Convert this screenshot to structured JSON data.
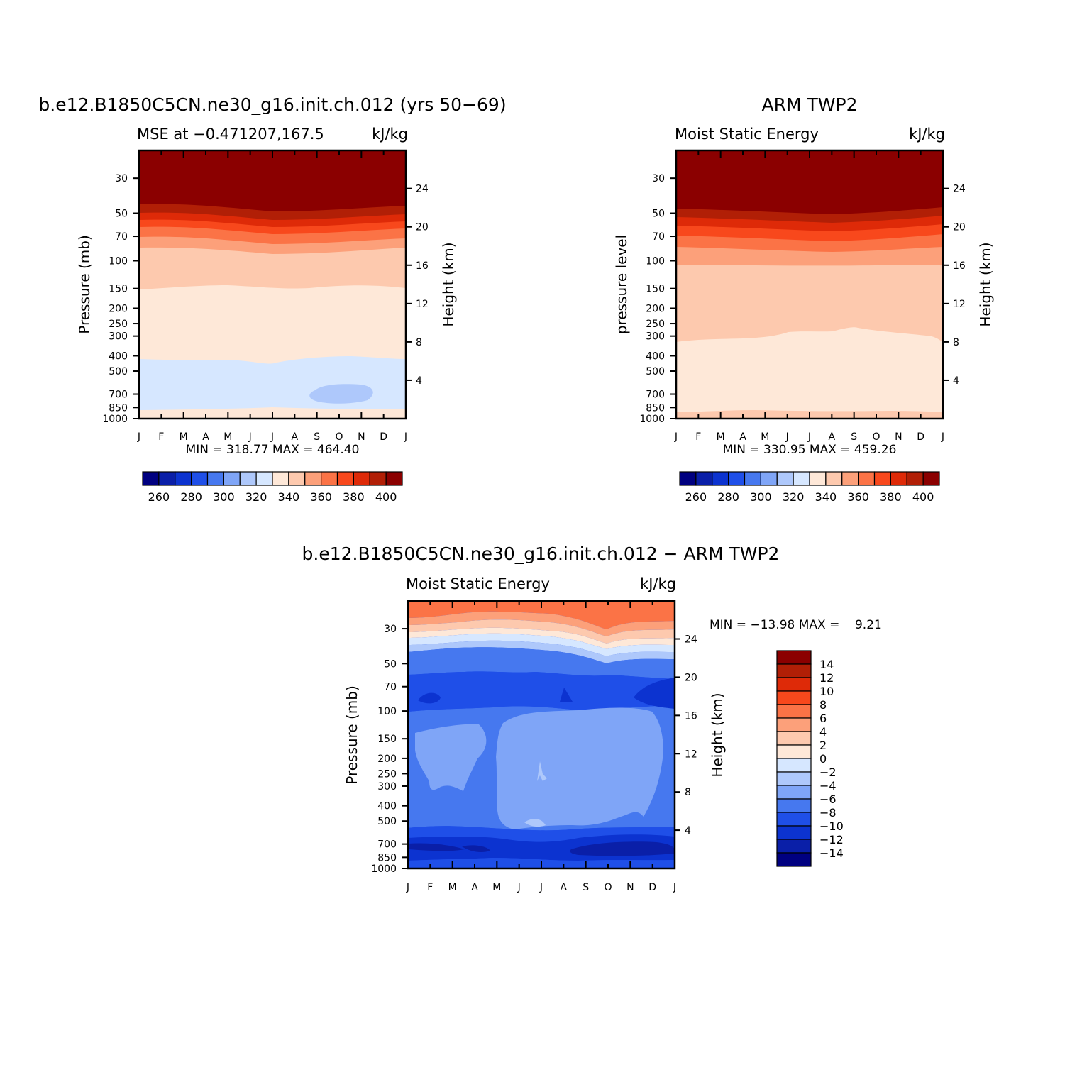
{
  "panels": [
    {
      "title": "b.e12.B1850C5CN.ne30_g16.init.ch.012 (yrs 50−69)",
      "left_string": "MSE at −0.471207,167.5",
      "right_string": "kJ/kg",
      "ylabel": "Pressure (mb)",
      "ylabel_right": "Height (km)",
      "stat_text": "MIN = 318.77 MAX = 464.40"
    },
    {
      "title": "ARM TWP2",
      "left_string": "Moist Static Energy",
      "right_string": "kJ/kg",
      "ylabel": "pressure level",
      "ylabel_right": "Height (km)",
      "stat_text": "MIN = 330.95 MAX = 459.26"
    },
    {
      "title": "b.e12.B1850C5CN.ne30_g16.init.ch.012 − ARM TWP2",
      "left_string": "Moist Static Energy",
      "right_string": "kJ/kg",
      "ylabel": "Pressure (mb)",
      "ylabel_right": "Height (km)",
      "stat_text": "MIN = −13.98 MAX =    9.21"
    }
  ],
  "chart_data": [
    {
      "type": "heatmap",
      "title": "b.e12.B1850C5CN.ne30_g16.init.ch.012 (yrs 50−69)",
      "subtitle_left": "MSE at −0.471207,167.5",
      "units": "kJ/kg",
      "xlabel": "",
      "ylabel": "Pressure (mb)",
      "ylabel_right": "Height (km)",
      "x_ticks": [
        "J",
        "F",
        "M",
        "A",
        "M",
        "J",
        "J",
        "A",
        "S",
        "O",
        "N",
        "D",
        "J"
      ],
      "y_ticks": [
        30,
        50,
        70,
        100,
        150,
        200,
        250,
        300,
        400,
        500,
        700,
        850,
        1000
      ],
      "y_right_ticks": [
        24,
        20,
        16,
        12,
        8,
        4
      ],
      "ylim": [
        1000,
        20
      ],
      "y_scale": "log",
      "min": 318.77,
      "max": 464.4,
      "levels": [
        250,
        260,
        270,
        280,
        290,
        300,
        310,
        320,
        330,
        340,
        350,
        360,
        370,
        380,
        390,
        400,
        410
      ],
      "colorbar_labels": [
        260,
        280,
        300,
        320,
        340,
        360,
        380,
        400
      ],
      "colorbar_orientation": "horizontal",
      "colors": [
        "#000080",
        "#0a1fa8",
        "#0c33d0",
        "#1f4fe8",
        "#4678ef",
        "#7fa5f7",
        "#aec8fb",
        "#d6e7ff",
        "#fee8d8",
        "#fdc9ae",
        "#fca07a",
        "#fb7346",
        "#f8481c",
        "#de2a08",
        "#b11f06",
        "#8b0000"
      ],
      "contour_boundaries": [
        {
          "pressure": [
            55,
            57,
            55,
            55,
            58,
            62,
            63,
            63,
            61,
            59,
            57,
            56,
            55
          ],
          "level_above": 400
        },
        {
          "pressure": [
            60,
            60,
            59,
            60,
            62,
            66,
            67,
            67,
            65,
            63,
            61,
            60,
            60
          ],
          "level_above": 390
        },
        {
          "pressure": [
            67,
            66,
            65,
            66,
            69,
            72,
            73,
            73,
            71,
            69,
            67,
            66,
            67
          ],
          "level_above": 380
        },
        {
          "pressure": [
            75,
            74,
            73,
            74,
            77,
            80,
            81,
            81,
            79,
            77,
            75,
            74,
            75
          ],
          "level_above": 370
        },
        {
          "pressure": [
            85,
            84,
            83,
            84,
            87,
            91,
            92,
            92,
            90,
            87,
            85,
            84,
            85
          ],
          "level_above": 360
        },
        {
          "pressure": [
            100,
            99,
            98,
            99,
            102,
            107,
            108,
            108,
            105,
            102,
            100,
            99,
            100
          ],
          "level_above": 350
        },
        {
          "pressure": [
            170,
            165,
            160,
            158,
            160,
            168,
            170,
            165,
            160,
            158,
            160,
            165,
            170
          ],
          "level_above": 340
        },
        {
          "pressure": [
            440,
            445,
            450,
            450,
            455,
            465,
            485,
            470,
            455,
            450,
            450,
            455,
            460
          ],
          "level_above": 330
        },
        {
          "pressure": [
            860,
            860,
            860,
            860,
            860,
            860,
            860,
            860,
            860,
            860,
            860,
            860,
            860
          ],
          "level_above": 320
        }
      ],
      "regions": [
        {
          "level": 310,
          "month_center": 8.6,
          "pressure_range": [
            690,
            750
          ]
        }
      ]
    },
    {
      "type": "heatmap",
      "title": "ARM TWP2",
      "subtitle_left": "Moist Static Energy",
      "units": "kJ/kg",
      "xlabel": "",
      "ylabel": "pressure level",
      "ylabel_right": "Height (km)",
      "x_ticks": [
        "J",
        "F",
        "M",
        "A",
        "M",
        "J",
        "J",
        "A",
        "S",
        "O",
        "N",
        "D",
        "J"
      ],
      "y_ticks": [
        30,
        50,
        70,
        100,
        150,
        200,
        250,
        300,
        400,
        500,
        700,
        850,
        1000
      ],
      "y_right_ticks": [
        24,
        20,
        16,
        12,
        8,
        4
      ],
      "ylim": [
        1000,
        20
      ],
      "y_scale": "log",
      "min": 330.95,
      "max": 459.26,
      "levels": [
        250,
        260,
        270,
        280,
        290,
        300,
        310,
        320,
        330,
        340,
        350,
        360,
        370,
        380,
        390,
        400,
        410
      ],
      "colorbar_labels": [
        260,
        280,
        300,
        320,
        340,
        360,
        380,
        400
      ],
      "colorbar_orientation": "horizontal",
      "colors": [
        "#000080",
        "#0a1fa8",
        "#0c33d0",
        "#1f4fe8",
        "#4678ef",
        "#7fa5f7",
        "#aec8fb",
        "#d6e7ff",
        "#fee8d8",
        "#fdc9ae",
        "#fca07a",
        "#fb7346",
        "#f8481c",
        "#de2a08",
        "#b11f06",
        "#8b0000"
      ],
      "contour_boundaries": [
        {
          "pressure": [
            60,
            62,
            64,
            66,
            68,
            71,
            73,
            73,
            71,
            68,
            65,
            62,
            60
          ],
          "level_above": 400
        },
        {
          "pressure": [
            66,
            68,
            70,
            72,
            74,
            77,
            79,
            79,
            77,
            74,
            71,
            68,
            66
          ],
          "level_above": 390
        },
        {
          "pressure": [
            74,
            75,
            77,
            79,
            81,
            84,
            86,
            86,
            84,
            81,
            78,
            76,
            74
          ],
          "level_above": 380
        },
        {
          "pressure": [
            86,
            87,
            89,
            91,
            93,
            96,
            98,
            98,
            96,
            93,
            90,
            88,
            86
          ],
          "level_above": 370
        },
        {
          "pressure": [
            122,
            123,
            124,
            125,
            126,
            126,
            126,
            126,
            126,
            125,
            124,
            123,
            122
          ],
          "level_above": 360
        },
        {
          "pressure": [
            380,
            368,
            360,
            360,
            355,
            340,
            330,
            330,
            320,
            335,
            340,
            350,
            390
          ],
          "level_above": 350
        },
        {
          "pressure": [
            960,
            955,
            950,
            940,
            945,
            950,
            950,
            955,
            955,
            955,
            955,
            955,
            960
          ],
          "level_above": 340
        }
      ],
      "regions": []
    },
    {
      "type": "heatmap",
      "title": "b.e12.B1850C5CN.ne30_g16.init.ch.012 − ARM TWP2",
      "subtitle_left": "Moist Static Energy",
      "units": "kJ/kg",
      "xlabel": "",
      "ylabel": "Pressure (mb)",
      "ylabel_right": "Height (km)",
      "x_ticks": [
        "J",
        "F",
        "M",
        "A",
        "M",
        "J",
        "J",
        "A",
        "S",
        "O",
        "N",
        "D",
        "J"
      ],
      "y_ticks": [
        30,
        50,
        70,
        100,
        150,
        200,
        250,
        300,
        400,
        500,
        700,
        850,
        1000
      ],
      "y_right_ticks": [
        24,
        20,
        16,
        12,
        8,
        4
      ],
      "ylim": [
        1000,
        20
      ],
      "y_scale": "log",
      "min": -13.98,
      "max": 9.21,
      "levels": [
        -16,
        -14,
        -12,
        -10,
        -8,
        -6,
        -4,
        -2,
        0,
        2,
        4,
        6,
        8,
        10,
        12,
        14,
        16
      ],
      "colorbar_labels": [
        14,
        12,
        10,
        8,
        6,
        4,
        2,
        0,
        -2,
        -4,
        -6,
        -8,
        -10,
        -12,
        -14
      ],
      "colorbar_labels_text": [
        "14",
        "12",
        "10",
        "8",
        "6",
        "4",
        "2",
        "0",
        "−2",
        "−4",
        "−6",
        "−8",
        "−10",
        "−12",
        "−14"
      ],
      "colorbar_orientation": "vertical",
      "colors": [
        "#000080",
        "#0a1fa8",
        "#0c33d0",
        "#1f4fe8",
        "#4678ef",
        "#7fa5f7",
        "#aec8fb",
        "#d6e7ff",
        "#fee8d8",
        "#fdc9ae",
        "#fca07a",
        "#fb7346",
        "#f8481c",
        "#de2a08",
        "#b11f06",
        "#8b0000"
      ],
      "contour_boundaries": [
        {
          "pressure": [
            29,
            30,
            31,
            31,
            31,
            29,
            28,
            30,
            31,
            30,
            30,
            29,
            29
          ],
          "level_above": 8
        },
        {
          "pressure": [
            33,
            34,
            35,
            35,
            34,
            32,
            31,
            33,
            35,
            34,
            33,
            32,
            33
          ],
          "level_above": 6
        },
        {
          "pressure": [
            37,
            38,
            39,
            38,
            37,
            35,
            35,
            37,
            39,
            38,
            37,
            36,
            37
          ],
          "level_above": 4
        },
        {
          "pressure": [
            40,
            41,
            41,
            40,
            40,
            38,
            38,
            40,
            42,
            41,
            40,
            39,
            40
          ],
          "level_above": 2
        },
        {
          "pressure": [
            44,
            44,
            44,
            43,
            43,
            41,
            41,
            43,
            45,
            44,
            43,
            42,
            44
          ],
          "level_above": 0
        },
        {
          "pressure": [
            48,
            47,
            47,
            46,
            46,
            45,
            45,
            47,
            49,
            48,
            47,
            46,
            48
          ],
          "level_above": -2
        },
        {
          "pressure": [
            53,
            51,
            50,
            49,
            50,
            50,
            50,
            52,
            55,
            55,
            53,
            51,
            53
          ],
          "level_above": -4
        },
        {
          "pressure": [
            70,
            68,
            63,
            60,
            62,
            65,
            66,
            70,
            76,
            76,
            72,
            68,
            70
          ],
          "level_above": -6
        },
        {
          "pressure": [
            1000,
            1000,
            1000,
            1000,
            1000,
            1000,
            1000,
            1000,
            1000,
            1000,
            1000,
            1000,
            1000
          ],
          "level_above": -8
        }
      ],
      "regions": [
        {
          "level": -10,
          "description": "band 70-150 mb"
        },
        {
          "level": -4,
          "description": "mid-troposphere patches 150-560 mb"
        },
        {
          "level": -12,
          "description": "lower layer 700-1000 mb"
        },
        {
          "level": -14,
          "description": "thin cores near 750 and 100 mb"
        }
      ]
    }
  ]
}
